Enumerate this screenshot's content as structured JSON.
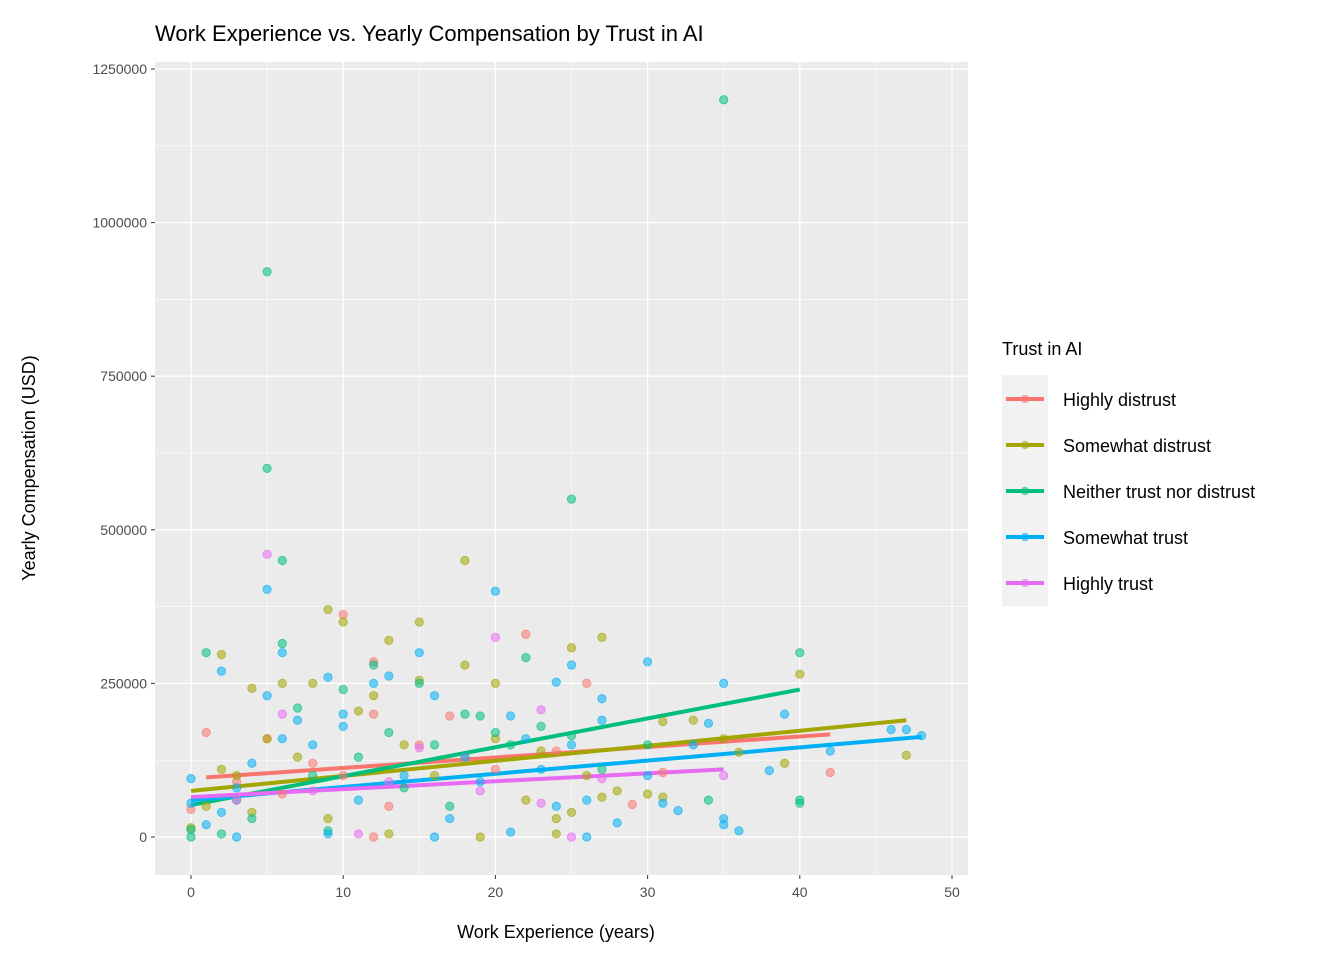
{
  "chart_data": {
    "type": "scatter",
    "title": "Work Experience vs. Yearly Compensation by Trust in AI",
    "xlabel": "Work Experience (years)",
    "ylabel": "Yearly Compensation (USD)",
    "xlim": [
      -2.5,
      50.5
    ],
    "ylim": [
      -60000,
      1260000
    ],
    "x_ticks": [
      0,
      10,
      20,
      30,
      40,
      50
    ],
    "x_tick_labels": [
      "0",
      "10",
      "20",
      "30",
      "40",
      "50"
    ],
    "y_ticks": [
      0,
      250000,
      500000,
      750000,
      1000000,
      1250000
    ],
    "y_tick_labels": [
      "0",
      "250000",
      "500000",
      "750000",
      "1000000",
      "1250000"
    ],
    "grid": true,
    "legend": {
      "title": "Trust in AI",
      "placement": "right"
    },
    "series": [
      {
        "name": "Highly distrust",
        "color": "#F8766D",
        "trend": [
          [
            1,
            97000
          ],
          [
            42,
            167000
          ]
        ],
        "points": [
          [
            10,
            362000
          ],
          [
            22,
            330000
          ],
          [
            12,
            285000
          ],
          [
            26,
            250000
          ],
          [
            17,
            197000
          ],
          [
            42,
            105000
          ],
          [
            29,
            53000
          ],
          [
            1,
            170000
          ],
          [
            0,
            45000
          ],
          [
            12,
            200000
          ],
          [
            5,
            160000
          ],
          [
            8,
            120000
          ],
          [
            15,
            150000
          ],
          [
            13,
            50000
          ],
          [
            12,
            0
          ],
          [
            20,
            110000
          ],
          [
            31,
            105000
          ],
          [
            24,
            140000
          ],
          [
            3,
            90000
          ],
          [
            6,
            70000
          ],
          [
            10,
            100000
          ],
          [
            18,
            130000
          ]
        ]
      },
      {
        "name": "Somewhat distrust",
        "color": "#A3A500",
        "trend": [
          [
            0,
            75000
          ],
          [
            47,
            190000
          ]
        ],
        "points": [
          [
            18,
            450000
          ],
          [
            9,
            370000
          ],
          [
            10,
            350000
          ],
          [
            15,
            350000
          ],
          [
            13,
            320000
          ],
          [
            27,
            325000
          ],
          [
            25,
            308000
          ],
          [
            2,
            297000
          ],
          [
            18,
            280000
          ],
          [
            40,
            265000
          ],
          [
            20,
            250000
          ],
          [
            4,
            242000
          ],
          [
            6,
            250000
          ],
          [
            31,
            188000
          ],
          [
            33,
            190000
          ],
          [
            47,
            133000
          ],
          [
            39,
            120000
          ],
          [
            36,
            138000
          ],
          [
            19,
            0
          ],
          [
            24,
            5000
          ],
          [
            24,
            30000
          ],
          [
            28,
            75000
          ],
          [
            27,
            65000
          ],
          [
            31,
            65000
          ],
          [
            0,
            15000
          ],
          [
            1,
            50000
          ],
          [
            3,
            100000
          ],
          [
            5,
            160000
          ],
          [
            8,
            250000
          ],
          [
            11,
            205000
          ],
          [
            12,
            230000
          ],
          [
            14,
            150000
          ],
          [
            16,
            100000
          ],
          [
            22,
            60000
          ],
          [
            23,
            140000
          ],
          [
            30,
            70000
          ],
          [
            35,
            160000
          ],
          [
            9,
            30000
          ],
          [
            13,
            5000
          ],
          [
            26,
            100000
          ],
          [
            2,
            110000
          ],
          [
            4,
            40000
          ],
          [
            7,
            130000
          ],
          [
            15,
            255000
          ],
          [
            20,
            160000
          ],
          [
            25,
            40000
          ]
        ]
      },
      {
        "name": "Neither trust nor distrust",
        "color": "#00BF7D",
        "trend": [
          [
            0,
            52000
          ],
          [
            40,
            240000
          ]
        ],
        "points": [
          [
            35,
            1200000
          ],
          [
            5,
            920000
          ],
          [
            5,
            600000
          ],
          [
            25,
            550000
          ],
          [
            6,
            450000
          ],
          [
            6,
            315000
          ],
          [
            1,
            300000
          ],
          [
            40,
            300000
          ],
          [
            22,
            292000
          ],
          [
            12,
            280000
          ],
          [
            40,
            60000
          ],
          [
            40,
            55000
          ],
          [
            34,
            60000
          ],
          [
            19,
            197000
          ],
          [
            18,
            200000
          ],
          [
            30,
            150000
          ],
          [
            23,
            180000
          ],
          [
            25,
            165000
          ],
          [
            0,
            0
          ],
          [
            0,
            12000
          ],
          [
            2,
            5000
          ],
          [
            10,
            240000
          ],
          [
            7,
            210000
          ],
          [
            15,
            250000
          ],
          [
            13,
            170000
          ],
          [
            16,
            150000
          ],
          [
            21,
            150000
          ],
          [
            17,
            50000
          ],
          [
            27,
            110000
          ],
          [
            20,
            170000
          ],
          [
            3,
            60000
          ],
          [
            4,
            30000
          ],
          [
            8,
            100000
          ],
          [
            9,
            10000
          ],
          [
            11,
            130000
          ],
          [
            14,
            80000
          ]
        ]
      },
      {
        "name": "Somewhat trust",
        "color": "#00B0F6",
        "trend": [
          [
            0,
            60000
          ],
          [
            48,
            163000
          ]
        ],
        "points": [
          [
            20,
            400000
          ],
          [
            5,
            403000
          ],
          [
            6,
            300000
          ],
          [
            30,
            285000
          ],
          [
            25,
            280000
          ],
          [
            2,
            270000
          ],
          [
            9,
            260000
          ],
          [
            13,
            262000
          ],
          [
            15,
            300000
          ],
          [
            24,
            252000
          ],
          [
            35,
            250000
          ],
          [
            16,
            230000
          ],
          [
            27,
            225000
          ],
          [
            39,
            200000
          ],
          [
            34,
            185000
          ],
          [
            27,
            190000
          ],
          [
            46,
            175000
          ],
          [
            47,
            175000
          ],
          [
            48,
            165000
          ],
          [
            42,
            140000
          ],
          [
            38,
            108000
          ],
          [
            36,
            10000
          ],
          [
            35,
            20000
          ],
          [
            35,
            30000
          ],
          [
            32,
            43000
          ],
          [
            28,
            23000
          ],
          [
            26,
            0
          ],
          [
            21,
            8000
          ],
          [
            16,
            0
          ],
          [
            0,
            95000
          ],
          [
            0,
            55000
          ],
          [
            1,
            20000
          ],
          [
            3,
            80000
          ],
          [
            4,
            120000
          ],
          [
            5,
            230000
          ],
          [
            7,
            190000
          ],
          [
            8,
            150000
          ],
          [
            10,
            200000
          ],
          [
            11,
            60000
          ],
          [
            12,
            250000
          ],
          [
            14,
            100000
          ],
          [
            17,
            30000
          ],
          [
            18,
            130000
          ],
          [
            19,
            90000
          ],
          [
            21,
            197000
          ],
          [
            22,
            160000
          ],
          [
            23,
            110000
          ],
          [
            24,
            50000
          ],
          [
            25,
            150000
          ],
          [
            26,
            60000
          ],
          [
            30,
            100000
          ],
          [
            31,
            55000
          ],
          [
            33,
            150000
          ],
          [
            9,
            5000
          ],
          [
            3,
            0
          ],
          [
            2,
            40000
          ],
          [
            6,
            160000
          ],
          [
            10,
            180000
          ]
        ]
      },
      {
        "name": "Highly trust",
        "color": "#E76BF3",
        "trend": [
          [
            0,
            65000
          ],
          [
            35,
            110000
          ]
        ],
        "points": [
          [
            5,
            460000
          ],
          [
            20,
            325000
          ],
          [
            23,
            207000
          ],
          [
            27,
            95000
          ],
          [
            35,
            100000
          ],
          [
            25,
            0
          ],
          [
            11,
            5000
          ],
          [
            6,
            200000
          ],
          [
            15,
            145000
          ],
          [
            19,
            75000
          ],
          [
            23,
            55000
          ],
          [
            8,
            75000
          ],
          [
            3,
            60000
          ],
          [
            13,
            90000
          ]
        ]
      }
    ]
  }
}
